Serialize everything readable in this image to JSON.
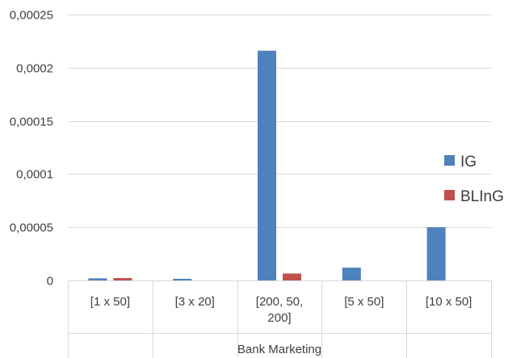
{
  "chart_data": {
    "type": "bar",
    "categories": [
      [
        "[1 x 50]"
      ],
      [
        "[3 x 20]"
      ],
      [
        "[200, 50,",
        "200]"
      ],
      [
        "[5 x 50]"
      ],
      [
        "[10 x 50]"
      ]
    ],
    "group_label": "Bank Marketing",
    "series": [
      {
        "name": "IG",
        "color": "#4f81bd",
        "values": [
          2e-06,
          1.5e-06,
          0.000216,
          1.2e-05,
          5e-05
        ]
      },
      {
        "name": "BLInG",
        "color": "#c0504d",
        "values": [
          2.2e-06,
          0.0,
          6.5e-06,
          0.0,
          0.0
        ]
      }
    ],
    "ylim": [
      0,
      0.00025
    ],
    "yticks": [
      {
        "value": 0,
        "label": "0"
      },
      {
        "value": 5e-05,
        "label": "0,00005"
      },
      {
        "value": 0.0001,
        "label": "0,0001"
      },
      {
        "value": 0.00015,
        "label": "0,00015"
      },
      {
        "value": 0.0002,
        "label": "0,0002"
      },
      {
        "value": 0.00025,
        "label": "0,00025"
      }
    ],
    "grid": true,
    "legend_position": "right",
    "gridline_color": "#d9d9d9"
  }
}
